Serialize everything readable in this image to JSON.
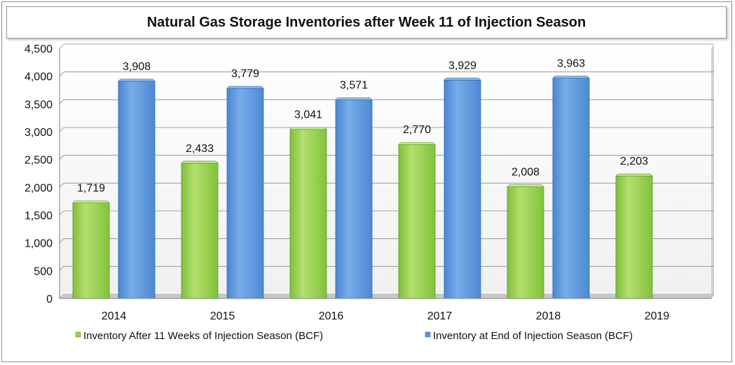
{
  "chart_data": {
    "type": "bar",
    "title": "Natural Gas Storage Inventories after Week 11 of Injection Season",
    "categories": [
      "2014",
      "2015",
      "2016",
      "2017",
      "2018",
      "2019"
    ],
    "series": [
      {
        "name": "Inventory After 11 Weeks of Injection Season (BCF)",
        "color": "#92d050",
        "values": [
          1719,
          2433,
          3041,
          2770,
          2008,
          2203
        ],
        "labels": [
          "1,719",
          "2,433",
          "3,041",
          "2,770",
          "2,008",
          "2,203"
        ]
      },
      {
        "name": "Inventory at End of Injection Season (BCF)",
        "color": "#5b96dc",
        "values": [
          3908,
          3779,
          3571,
          3929,
          3963,
          null
        ],
        "labels": [
          "3,908",
          "3,779",
          "3,571",
          "3,929",
          "3,963",
          null
        ]
      }
    ],
    "ylim": [
      0,
      4500
    ],
    "yticks": [
      0,
      500,
      1000,
      1500,
      2000,
      2500,
      3000,
      3500,
      4000,
      4500
    ],
    "ytick_labels": [
      "0",
      "500",
      "1,000",
      "1,500",
      "2,000",
      "2,500",
      "3,000",
      "3,500",
      "4,000",
      "4,500"
    ],
    "xlabel": "",
    "ylabel": "",
    "grid": true,
    "legend": "bottom"
  }
}
